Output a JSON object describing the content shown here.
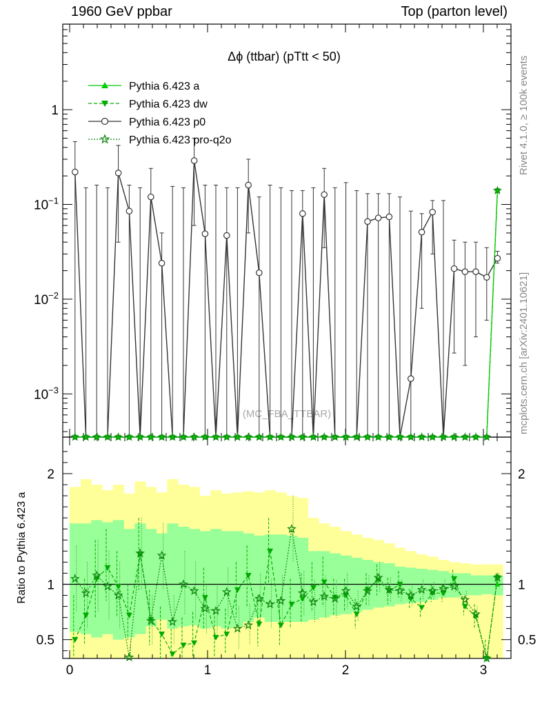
{
  "header": {
    "left": "1960 GeV ppbar",
    "right": "Top (parton level)"
  },
  "side": {
    "rivet": "Rivet 4.1.0, ≥ 100k events",
    "mcplots": "mcplots.cern.ch [arXiv:2401.10621]"
  },
  "colors": {
    "a": "#00cc00",
    "dw": "#00aa00",
    "p0": "#333333",
    "proq2o": "#118811",
    "band_outer": "#ffff99",
    "band_inner": "#99ff99"
  },
  "chart_data": [
    {
      "type": "line",
      "title": "Δϕ (ttbar) (pTtt < 50)",
      "watermark": "(MC_FBA_TTBAR)",
      "yscale": "log",
      "ylim": [
        0.00035,
        8
      ],
      "xlim": [
        -0.05,
        3.2
      ],
      "yticks": [
        {
          "v": 0.001,
          "base": "10",
          "exp": "−3"
        },
        {
          "v": 0.01,
          "base": "10",
          "exp": "−2"
        },
        {
          "v": 0.1,
          "base": "10",
          "exp": "−1"
        },
        {
          "v": 1,
          "base": "1",
          "exp": ""
        }
      ],
      "legend": [
        "Pythia 6.423 a",
        "Pythia 6.423 dw",
        "Pythia 6.423 p0",
        "Pythia 6.423 pro-q2o"
      ],
      "legend_position": "top-left",
      "x": [
        0.039,
        0.118,
        0.196,
        0.275,
        0.353,
        0.432,
        0.511,
        0.589,
        0.668,
        0.746,
        0.825,
        0.903,
        0.982,
        1.06,
        1.139,
        1.217,
        1.296,
        1.374,
        1.453,
        1.532,
        1.61,
        1.689,
        1.767,
        1.846,
        1.924,
        2.003,
        2.081,
        2.16,
        2.238,
        2.317,
        2.395,
        2.474,
        2.553,
        2.631,
        2.71,
        2.788,
        2.867,
        2.945,
        3.024,
        3.102
      ],
      "series": [
        {
          "name": "Pythia 6.423 a",
          "key": "a",
          "values": [
            0.00035,
            0.00035,
            0.00035,
            0.00035,
            0.00035,
            0.00035,
            0.00035,
            0.00035,
            0.00035,
            0.00035,
            0.00035,
            0.00035,
            0.00035,
            0.00035,
            0.00035,
            0.00035,
            0.00035,
            0.00035,
            0.00035,
            0.00035,
            0.00035,
            0.00035,
            0.00035,
            0.00035,
            0.00035,
            0.00035,
            0.00035,
            0.00035,
            0.00035,
            0.00035,
            0.00035,
            0.00035,
            0.00035,
            0.00035,
            0.00035,
            0.00035,
            0.00035,
            0.00035,
            0.00035,
            0.14
          ]
        },
        {
          "name": "Pythia 6.423 dw",
          "key": "dw",
          "values": [
            0.00035,
            0.00035,
            0.00035,
            0.00035,
            0.00035,
            0.00035,
            0.00035,
            0.00035,
            0.00035,
            0.00035,
            0.00035,
            0.00035,
            0.00035,
            0.00035,
            0.00035,
            0.00035,
            0.00035,
            0.00035,
            0.00035,
            0.00035,
            0.00035,
            0.00035,
            0.00035,
            0.00035,
            0.00035,
            0.00035,
            0.00035,
            0.00035,
            0.00035,
            0.00035,
            0.00035,
            0.00035,
            0.00035,
            0.00035,
            0.00035,
            0.00035,
            0.00035,
            0.00035,
            0.00035,
            0.14
          ]
        },
        {
          "name": "Pythia 6.423 p0",
          "key": "p0",
          "values": [
            0.22,
            0.00035,
            0.00035,
            0.00035,
            0.215,
            0.085,
            0.00035,
            0.12,
            0.024,
            0.00035,
            0.00035,
            0.29,
            0.049,
            0.00035,
            0.047,
            0.00035,
            0.16,
            0.019,
            0.00035,
            0.00035,
            0.00035,
            0.08,
            0.00035,
            0.127,
            0.00035,
            0.00035,
            0.00035,
            0.066,
            0.072,
            0.074,
            0.00035,
            0.00145,
            0.051,
            0.083,
            0.00035,
            0.021,
            0.0195,
            0.0195,
            0.017,
            0.027
          ],
          "err_hi": [
            0.46,
            0.15,
            0.16,
            0.15,
            0.42,
            0.16,
            0.15,
            0.24,
            0.05,
            0.155,
            0.15,
            0.5,
            0.16,
            0.16,
            0.15,
            0.15,
            0.3,
            0.12,
            0.16,
            0.15,
            0.14,
            0.14,
            0.15,
            0.24,
            0.15,
            0.17,
            0.14,
            0.13,
            0.13,
            0.13,
            0.12,
            0.085,
            0.08,
            0.11,
            0.11,
            0.042,
            0.04,
            0.04,
            0.035,
            0.032
          ],
          "err_lo": [
            0.00035,
            0.00035,
            0.00035,
            0.00035,
            0.04,
            0.00035,
            0.00035,
            0.00035,
            0.00035,
            0.00035,
            0.00035,
            0.06,
            0.00035,
            0.00035,
            0.00035,
            0.00035,
            0.05,
            0.00035,
            0.00035,
            0.00035,
            0.00035,
            0.00035,
            0.00035,
            0.035,
            0.00035,
            0.00035,
            0.00035,
            0.00035,
            0.00035,
            0.00035,
            0.00035,
            0.00035,
            0.008,
            0.03,
            0.00035,
            0.0027,
            0.002,
            0.004,
            0.006,
            0.024
          ]
        },
        {
          "name": "Pythia 6.423 pro-q2o",
          "key": "proq2o",
          "values": [
            0.00035,
            0.00035,
            0.00035,
            0.00035,
            0.00035,
            0.00035,
            0.00035,
            0.00035,
            0.00035,
            0.00035,
            0.00035,
            0.00035,
            0.00035,
            0.00035,
            0.00035,
            0.00035,
            0.00035,
            0.00035,
            0.00035,
            0.00035,
            0.00035,
            0.00035,
            0.00035,
            0.00035,
            0.00035,
            0.00035,
            0.00035,
            0.00035,
            0.00035,
            0.00035,
            0.00035,
            0.00035,
            0.00035,
            0.00035,
            0.00035,
            0.00035,
            0.00035,
            0.00035,
            0.00035,
            0.14
          ]
        }
      ]
    },
    {
      "type": "line",
      "ylabel": "Ratio to Pythia 6.423 a",
      "xlim": [
        -0.05,
        3.2
      ],
      "ylim": [
        0.33,
        2.33
      ],
      "yticks": [
        {
          "v": 0.5,
          "label": "0.5"
        },
        {
          "v": 1,
          "label": "1"
        },
        {
          "v": 2,
          "label": "2"
        }
      ],
      "xticks": [
        {
          "v": 0,
          "label": "0"
        },
        {
          "v": 1,
          "label": "1"
        },
        {
          "v": 2,
          "label": "2"
        },
        {
          "v": 3,
          "label": "3"
        }
      ],
      "bin_width": 0.0785,
      "band_outer_lo": [
        0.33,
        0.33,
        0.33,
        0.33,
        0.33,
        0.33,
        0.33,
        0.33,
        0.33,
        0.33,
        0.33,
        0.33,
        0.33,
        0.33,
        0.33,
        0.33,
        0.33,
        0.33,
        0.33,
        0.33,
        0.33,
        0.33,
        0.33,
        0.33,
        0.33,
        0.33,
        0.33,
        0.33,
        0.33,
        0.33,
        0.33,
        0.33,
        0.33,
        0.33,
        0.33,
        0.33,
        0.33,
        0.33,
        0.33,
        0.33
      ],
      "band_outer_hi": [
        1.88,
        1.95,
        1.9,
        1.85,
        1.9,
        1.82,
        1.93,
        1.88,
        1.83,
        1.95,
        1.9,
        1.88,
        1.8,
        1.85,
        1.82,
        1.83,
        1.84,
        1.83,
        1.85,
        1.83,
        1.8,
        1.78,
        1.6,
        1.55,
        1.52,
        1.48,
        1.45,
        1.42,
        1.4,
        1.37,
        1.33,
        1.3,
        1.27,
        1.25,
        1.22,
        1.2,
        1.19,
        1.18,
        1.18,
        1.18
      ],
      "band_inner_lo": [
        0.57,
        0.55,
        0.52,
        0.55,
        0.5,
        0.52,
        0.55,
        0.62,
        0.68,
        0.6,
        0.62,
        0.63,
        0.6,
        0.62,
        0.6,
        0.62,
        0.66,
        0.7,
        0.66,
        0.66,
        0.66,
        0.66,
        0.68,
        0.7,
        0.72,
        0.73,
        0.75,
        0.77,
        0.79,
        0.8,
        0.82,
        0.83,
        0.84,
        0.86,
        0.88,
        0.88,
        0.9,
        0.9,
        0.91,
        0.9
      ],
      "band_inner_hi": [
        1.55,
        1.55,
        1.58,
        1.56,
        1.58,
        1.5,
        1.55,
        1.5,
        1.46,
        1.55,
        1.52,
        1.5,
        1.48,
        1.5,
        1.48,
        1.48,
        1.46,
        1.44,
        1.45,
        1.45,
        1.44,
        1.42,
        1.3,
        1.3,
        1.28,
        1.26,
        1.24,
        1.22,
        1.2,
        1.19,
        1.16,
        1.15,
        1.14,
        1.13,
        1.12,
        1.1,
        1.1,
        1.08,
        1.08,
        1.08
      ],
      "series": [
        {
          "name": "Pythia 6.423 dw",
          "key": "dw",
          "values": [
            0.5,
            0.72,
            1.05,
            1.15,
            0.98,
            0.72,
            1.27,
            0.68,
            0.55,
            0.37,
            0.45,
            0.47,
            0.88,
            0.52,
            0.55,
            0.95,
            1.08,
            0.64,
            1.3,
            0.63,
            0.82,
            0.87,
            0.97,
            1.02,
            0.88,
            0.9,
            0.73,
            0.95,
            1.04,
            0.94,
            1.0,
            0.87,
            0.79,
            0.92,
            0.92,
            1.05,
            0.8,
            0.71,
            0.33,
            1.06
          ],
          "err_lo": [
            0.33,
            0.45,
            0.7,
            0.85,
            0.7,
            0.5,
            0.95,
            0.45,
            0.33,
            0.33,
            0.33,
            0.33,
            0.6,
            0.35,
            0.38,
            0.7,
            0.8,
            0.44,
            1.0,
            0.44,
            0.6,
            0.65,
            0.75,
            0.8,
            0.72,
            0.75,
            0.6,
            0.8,
            0.9,
            0.82,
            0.88,
            0.78,
            0.7,
            0.84,
            0.84,
            0.97,
            0.72,
            0.6,
            0.33,
            1.02
          ],
          "err_hi": [
            0.9,
            1.05,
            1.4,
            1.5,
            1.3,
            1.0,
            1.6,
            0.95,
            0.8,
            0.6,
            0.7,
            0.75,
            1.15,
            0.75,
            0.78,
            1.2,
            1.35,
            0.9,
            1.6,
            0.85,
            1.05,
            1.1,
            1.2,
            1.25,
            1.05,
            1.05,
            0.87,
            1.1,
            1.18,
            1.06,
            1.12,
            0.96,
            0.88,
            1.0,
            1.0,
            1.13,
            0.88,
            0.82,
            0.5,
            1.1
          ]
        },
        {
          "name": "Pythia 6.423 pro-q2o",
          "key": "proq2o",
          "values": [
            1.05,
            0.92,
            1.08,
            0.98,
            0.9,
            0.34,
            1.28,
            0.67,
            1.26,
            0.66,
            1.0,
            0.94,
            0.78,
            0.76,
            0.93,
            0.6,
            0.63,
            0.87,
            0.82,
            0.85,
            1.5,
            0.92,
            0.84,
            0.89,
            0.87,
            0.94,
            0.8,
            0.94,
            1.06,
            0.95,
            0.94,
            0.9,
            0.95,
            0.94,
            0.96,
            0.98,
            0.86,
            0.73,
            0.33,
            1.06
          ],
          "err_lo": [
            0.75,
            0.6,
            0.75,
            0.68,
            0.6,
            0.33,
            0.95,
            0.45,
            0.95,
            0.45,
            0.72,
            0.68,
            0.55,
            0.55,
            0.7,
            0.42,
            0.45,
            0.65,
            0.6,
            0.64,
            1.2,
            0.72,
            0.65,
            0.7,
            0.7,
            0.78,
            0.66,
            0.8,
            0.92,
            0.84,
            0.84,
            0.8,
            0.86,
            0.86,
            0.88,
            0.92,
            0.78,
            0.65,
            0.33,
            1.02
          ],
          "err_hi": [
            1.35,
            1.2,
            1.4,
            1.3,
            1.2,
            0.5,
            1.6,
            0.9,
            1.55,
            0.9,
            1.3,
            1.2,
            1.0,
            1.0,
            1.15,
            0.8,
            0.82,
            1.1,
            1.05,
            1.08,
            1.8,
            1.12,
            1.04,
            1.08,
            1.04,
            1.1,
            0.94,
            1.08,
            1.2,
            1.06,
            1.04,
            1.0,
            1.04,
            1.02,
            1.04,
            1.05,
            0.94,
            0.8,
            0.45,
            1.1
          ]
        }
      ]
    }
  ]
}
